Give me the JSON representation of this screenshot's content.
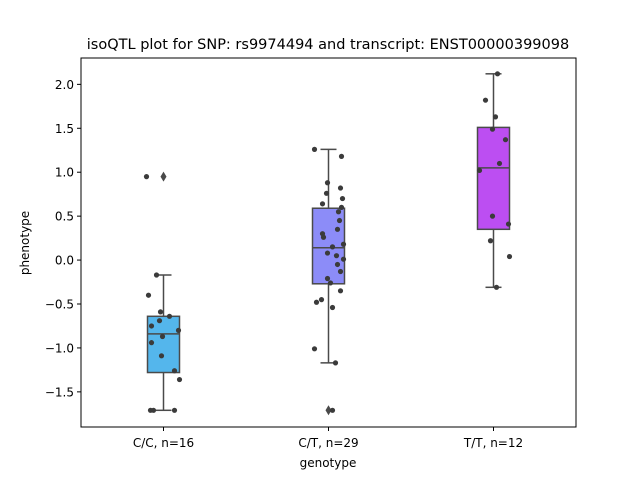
{
  "chart_data": {
    "type": "box",
    "title": "isoQTL plot for SNP: rs9974494 and transcript: ENST00000399098",
    "xlabel": "genotype",
    "ylabel": "phenotype",
    "ylim": [
      -1.9,
      2.3
    ],
    "yticks": [
      -1.5,
      -1.0,
      -0.5,
      0.0,
      0.5,
      1.0,
      1.5,
      2.0
    ],
    "ytick_labels": [
      "−1.5",
      "−1.0",
      "−0.5",
      "0.0",
      "0.5",
      "1.0",
      "1.5",
      "2.0"
    ],
    "grid": false,
    "categories": [
      "C/C, n=16",
      "C/T, n=29",
      "T/T, n=12"
    ],
    "boxes": [
      {
        "category": "C/C, n=16",
        "color": "#54b6ec",
        "q1": -1.28,
        "median": -0.84,
        "q3": -0.64,
        "whisker_low": -1.71,
        "whisker_high": -0.17,
        "outliers": [
          0.95
        ]
      },
      {
        "category": "C/T, n=29",
        "color": "#8c8cf8",
        "q1": -0.27,
        "median": 0.14,
        "q3": 0.59,
        "whisker_low": -1.17,
        "whisker_high": 1.26,
        "outliers": [
          -1.71
        ]
      },
      {
        "category": "T/T, n=12",
        "color": "#bc4ef2",
        "q1": 0.35,
        "median": 1.05,
        "q3": 1.51,
        "whisker_low": -0.31,
        "whisker_high": 2.12,
        "outliers": []
      }
    ],
    "points": [
      [
        {
          "dx": -0.17,
          "y": 0.95
        },
        {
          "dx": -0.07,
          "y": -0.17
        },
        {
          "dx": -0.15,
          "y": -0.4
        },
        {
          "dx": -0.03,
          "y": -0.59
        },
        {
          "dx": 0.06,
          "y": -0.64
        },
        {
          "dx": -0.04,
          "y": -0.69
        },
        {
          "dx": -0.12,
          "y": -0.75
        },
        {
          "dx": 0.15,
          "y": -0.8
        },
        {
          "dx": -0.01,
          "y": -0.87
        },
        {
          "dx": -0.12,
          "y": -0.94
        },
        {
          "dx": -0.02,
          "y": -1.09
        },
        {
          "dx": 0.11,
          "y": -1.26
        },
        {
          "dx": 0.16,
          "y": -1.36
        },
        {
          "dx": -0.13,
          "y": -1.71
        },
        {
          "dx": -0.1,
          "y": -1.71
        },
        {
          "dx": 0.11,
          "y": -1.71
        }
      ],
      [
        {
          "dx": -0.14,
          "y": 1.26
        },
        {
          "dx": 0.13,
          "y": 1.18
        },
        {
          "dx": -0.01,
          "y": 0.88
        },
        {
          "dx": 0.12,
          "y": 0.82
        },
        {
          "dx": -0.02,
          "y": 0.76
        },
        {
          "dx": 0.14,
          "y": 0.7
        },
        {
          "dx": -0.06,
          "y": 0.64
        },
        {
          "dx": 0.13,
          "y": 0.6
        },
        {
          "dx": 0.1,
          "y": 0.55
        },
        {
          "dx": 0.11,
          "y": 0.45
        },
        {
          "dx": 0.09,
          "y": 0.35
        },
        {
          "dx": -0.06,
          "y": 0.3
        },
        {
          "dx": -0.05,
          "y": 0.26
        },
        {
          "dx": 0.15,
          "y": 0.18
        },
        {
          "dx": 0.04,
          "y": 0.15
        },
        {
          "dx": -0.01,
          "y": 0.08
        },
        {
          "dx": 0.08,
          "y": 0.05
        },
        {
          "dx": 0.15,
          "y": 0.01
        },
        {
          "dx": 0.09,
          "y": -0.05
        },
        {
          "dx": 0.12,
          "y": -0.13
        },
        {
          "dx": -0.01,
          "y": -0.21
        },
        {
          "dx": 0.02,
          "y": -0.26
        },
        {
          "dx": 0.12,
          "y": -0.35
        },
        {
          "dx": -0.07,
          "y": -0.45
        },
        {
          "dx": -0.12,
          "y": -0.48
        },
        {
          "dx": 0.04,
          "y": -0.54
        },
        {
          "dx": -0.14,
          "y": -1.01
        },
        {
          "dx": 0.07,
          "y": -1.17
        },
        {
          "dx": 0.04,
          "y": -1.71
        }
      ],
      [
        {
          "dx": 0.04,
          "y": 2.12
        },
        {
          "dx": -0.08,
          "y": 1.82
        },
        {
          "dx": 0.02,
          "y": 1.63
        },
        {
          "dx": -0.01,
          "y": 1.49
        },
        {
          "dx": 0.12,
          "y": 1.37
        },
        {
          "dx": 0.06,
          "y": 1.1
        },
        {
          "dx": -0.14,
          "y": 1.02
        },
        {
          "dx": -0.01,
          "y": 0.5
        },
        {
          "dx": 0.15,
          "y": 0.41
        },
        {
          "dx": -0.03,
          "y": 0.22
        },
        {
          "dx": 0.16,
          "y": 0.04
        },
        {
          "dx": 0.03,
          "y": -0.31
        }
      ]
    ],
    "point_color": "#3b3b3b",
    "line_color": "#4a4a4a",
    "axis_color": "#000000"
  }
}
